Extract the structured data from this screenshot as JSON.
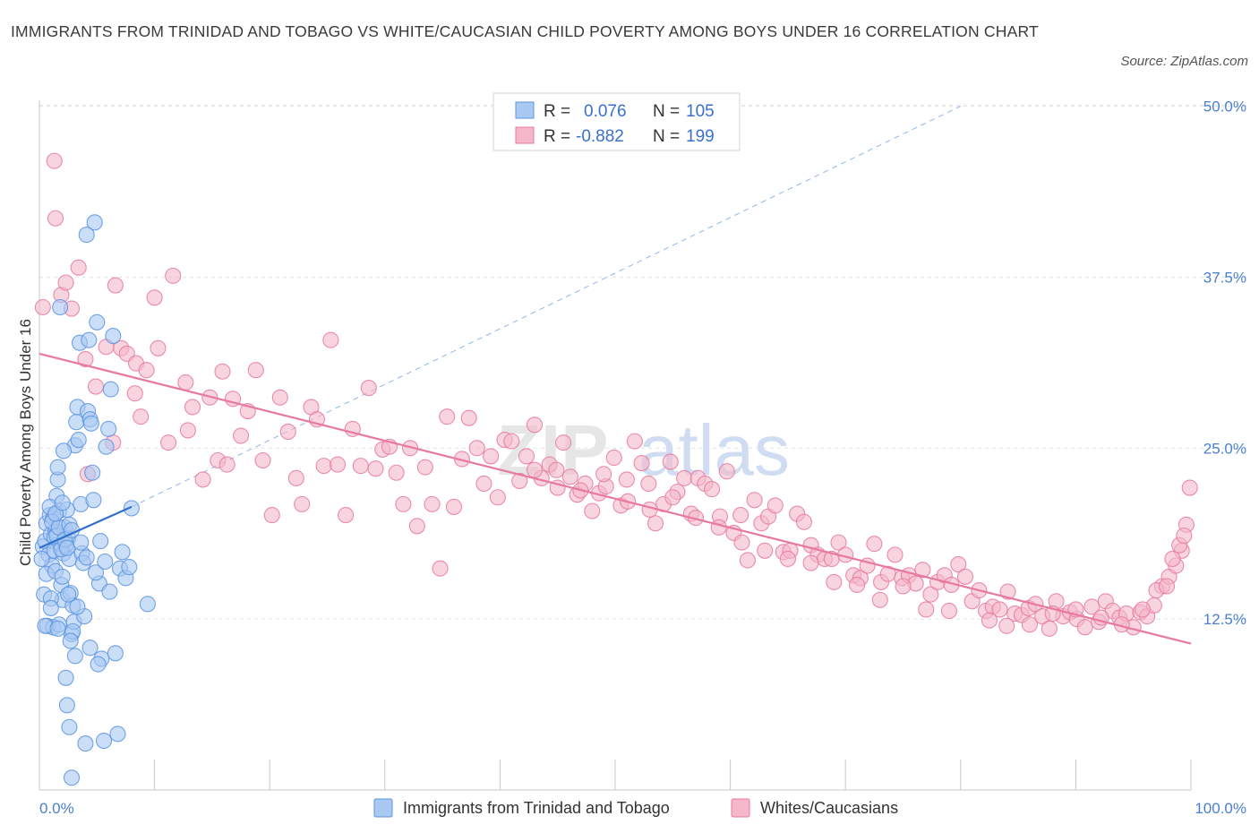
{
  "title": "IMMIGRANTS FROM TRINIDAD AND TOBAGO VS WHITE/CAUCASIAN CHILD POVERTY AMONG BOYS UNDER 16 CORRELATION CHART",
  "source": "Source: ZipAtlas.com",
  "watermark": {
    "zip": "ZIP",
    "atlas": "atlas"
  },
  "legend_box": {
    "rows": [
      {
        "r_label": "R =",
        "r_value": "0.076",
        "n_label": "N =",
        "n_value": "105",
        "color": "#a9c8f2"
      },
      {
        "r_label": "R =",
        "r_value": "-0.882",
        "n_label": "N =",
        "n_value": "199",
        "color": "#f4b8ca"
      }
    ]
  },
  "chart_data": {
    "type": "scatter",
    "title": "IMMIGRANTS FROM TRINIDAD AND TOBAGO VS WHITE/CAUCASIAN CHILD POVERTY AMONG BOYS UNDER 16 CORRELATION CHART",
    "xlabel": "",
    "ylabel": "Child Poverty Among Boys Under 16",
    "xlim": [
      0,
      100
    ],
    "ylim": [
      0,
      52
    ],
    "x_tick_labels": [
      "0.0%",
      "100.0%"
    ],
    "y_ticks": [
      12.5,
      25.0,
      37.5,
      50.0
    ],
    "y_tick_labels": [
      "12.5%",
      "25.0%",
      "37.5%",
      "50.0%"
    ],
    "grid": true,
    "legend_position": "bottom",
    "series": [
      {
        "name": "Immigrants from Trinidad and Tobago",
        "color": "#5b93e0",
        "fill": "#a9c8f2",
        "trend": {
          "x": [
            0,
            8
          ],
          "y": [
            17.7,
            20.7
          ],
          "dashed_extension_to": [
            80,
            50
          ]
        },
        "points": [
          [
            0.3,
            17.8
          ],
          [
            0.5,
            18.2
          ],
          [
            0.6,
            19.5
          ],
          [
            0.8,
            17.2
          ],
          [
            0.9,
            20.1
          ],
          [
            1.0,
            18.7
          ],
          [
            1.1,
            16.4
          ],
          [
            1.2,
            19.9
          ],
          [
            0.4,
            14.3
          ],
          [
            0.7,
            12.0
          ],
          [
            1.3,
            17.5
          ],
          [
            1.4,
            18.9
          ],
          [
            1.5,
            21.5
          ],
          [
            1.6,
            22.7
          ],
          [
            1.7,
            20.4
          ],
          [
            1.8,
            18.0
          ],
          [
            1.9,
            15.0
          ],
          [
            2.0,
            13.9
          ],
          [
            2.1,
            17.3
          ],
          [
            2.2,
            19.2
          ],
          [
            2.3,
            17.9
          ],
          [
            2.4,
            20.5
          ],
          [
            2.5,
            18.4
          ],
          [
            2.6,
            16.9
          ],
          [
            2.7,
            14.4
          ],
          [
            2.8,
            11.4
          ],
          [
            2.9,
            13.5
          ],
          [
            3.0,
            12.3
          ],
          [
            3.1,
            25.2
          ],
          [
            3.2,
            26.9
          ],
          [
            3.3,
            28.0
          ],
          [
            3.4,
            25.6
          ],
          [
            3.5,
            32.7
          ],
          [
            3.6,
            20.9
          ],
          [
            1.2,
            11.9
          ],
          [
            1.6,
            23.6
          ],
          [
            1.8,
            35.3
          ],
          [
            2.1,
            24.8
          ],
          [
            2.3,
            8.2
          ],
          [
            2.4,
            6.2
          ],
          [
            2.6,
            4.6
          ],
          [
            2.8,
            0.9
          ],
          [
            3.7,
            17.3
          ],
          [
            3.8,
            16.6
          ],
          [
            3.9,
            12.7
          ],
          [
            4.0,
            3.4
          ],
          [
            4.2,
            27.7
          ],
          [
            4.4,
            27.1
          ],
          [
            4.6,
            23.2
          ],
          [
            4.8,
            41.5
          ],
          [
            5.0,
            34.2
          ],
          [
            5.2,
            15.1
          ],
          [
            5.4,
            9.6
          ],
          [
            5.6,
            3.6
          ],
          [
            5.8,
            25.1
          ],
          [
            6.0,
            26.4
          ],
          [
            6.2,
            29.3
          ],
          [
            6.4,
            33.2
          ],
          [
            6.6,
            10.0
          ],
          [
            6.8,
            4.1
          ],
          [
            7.0,
            16.2
          ],
          [
            7.2,
            17.4
          ],
          [
            7.5,
            15.5
          ],
          [
            7.8,
            16.3
          ],
          [
            8.0,
            20.6
          ],
          [
            9.4,
            13.6
          ],
          [
            4.1,
            40.6
          ],
          [
            4.3,
            32.9
          ],
          [
            4.5,
            26.8
          ],
          [
            4.7,
            21.2
          ],
          [
            0.2,
            16.9
          ],
          [
            0.6,
            15.8
          ],
          [
            1.0,
            14.0
          ],
          [
            1.4,
            16.0
          ],
          [
            1.7,
            12.1
          ],
          [
            2.0,
            15.6
          ],
          [
            2.5,
            14.3
          ],
          [
            2.9,
            11.6
          ],
          [
            3.1,
            9.8
          ],
          [
            3.3,
            13.4
          ],
          [
            1.1,
            19.6
          ],
          [
            1.3,
            18.5
          ],
          [
            1.5,
            18.6
          ],
          [
            1.7,
            19.2
          ],
          [
            1.9,
            17.6
          ],
          [
            2.2,
            18.3
          ],
          [
            2.4,
            17.7
          ],
          [
            2.6,
            19.4
          ],
          [
            0.9,
            20.7
          ],
          [
            1.4,
            20.2
          ],
          [
            2.0,
            21.0
          ],
          [
            2.8,
            19.0
          ],
          [
            3.6,
            18.1
          ],
          [
            4.1,
            17.0
          ],
          [
            4.9,
            15.9
          ],
          [
            5.3,
            18.2
          ],
          [
            5.7,
            16.7
          ],
          [
            6.1,
            14.5
          ],
          [
            0.5,
            12.0
          ],
          [
            1.0,
            13.3
          ],
          [
            1.6,
            11.8
          ],
          [
            2.7,
            10.9
          ],
          [
            4.4,
            10.4
          ],
          [
            5.1,
            9.2
          ]
        ]
      },
      {
        "name": "Whites/Caucasians",
        "color": "#e8799e",
        "fill": "#f4b8ca",
        "trend": {
          "x": [
            0,
            100
          ],
          "y": [
            31.9,
            10.7
          ]
        },
        "points": [
          [
            0.3,
            35.3
          ],
          [
            1.4,
            41.8
          ],
          [
            1.3,
            46.0
          ],
          [
            1.9,
            36.2
          ],
          [
            2.3,
            37.1
          ],
          [
            2.8,
            35.2
          ],
          [
            3.4,
            38.2
          ],
          [
            4.0,
            31.5
          ],
          [
            4.2,
            23.1
          ],
          [
            4.9,
            29.5
          ],
          [
            5.8,
            32.4
          ],
          [
            6.4,
            25.4
          ],
          [
            6.6,
            36.9
          ],
          [
            7.1,
            32.3
          ],
          [
            7.6,
            31.9
          ],
          [
            8.3,
            29.0
          ],
          [
            8.4,
            31.2
          ],
          [
            8.8,
            27.3
          ],
          [
            9.3,
            30.7
          ],
          [
            10.0,
            36.0
          ],
          [
            10.3,
            32.3
          ],
          [
            11.2,
            25.4
          ],
          [
            11.6,
            37.6
          ],
          [
            12.7,
            29.8
          ],
          [
            12.9,
            26.3
          ],
          [
            13.3,
            28.0
          ],
          [
            14.2,
            22.7
          ],
          [
            14.8,
            28.7
          ],
          [
            15.5,
            24.1
          ],
          [
            15.9,
            30.6
          ],
          [
            16.3,
            23.8
          ],
          [
            16.8,
            28.6
          ],
          [
            17.5,
            25.9
          ],
          [
            18.1,
            27.7
          ],
          [
            18.8,
            30.7
          ],
          [
            19.4,
            24.1
          ],
          [
            20.2,
            20.1
          ],
          [
            20.9,
            28.7
          ],
          [
            21.6,
            26.2
          ],
          [
            22.3,
            22.8
          ],
          [
            22.8,
            20.9
          ],
          [
            23.6,
            28.0
          ],
          [
            24.1,
            27.1
          ],
          [
            24.7,
            23.7
          ],
          [
            25.3,
            32.9
          ],
          [
            25.9,
            23.8
          ],
          [
            26.6,
            20.1
          ],
          [
            27.2,
            26.4
          ],
          [
            27.9,
            23.7
          ],
          [
            28.6,
            29.4
          ],
          [
            29.2,
            23.5
          ],
          [
            29.8,
            24.9
          ],
          [
            30.4,
            25.1
          ],
          [
            31.0,
            23.2
          ],
          [
            31.6,
            20.9
          ],
          [
            32.2,
            25.0
          ],
          [
            32.8,
            19.3
          ],
          [
            33.5,
            23.6
          ],
          [
            34.1,
            20.9
          ],
          [
            34.8,
            16.2
          ],
          [
            35.4,
            27.3
          ],
          [
            36.0,
            20.7
          ],
          [
            36.7,
            24.2
          ],
          [
            37.3,
            27.2
          ],
          [
            38.0,
            25.0
          ],
          [
            38.6,
            22.4
          ],
          [
            39.2,
            24.4
          ],
          [
            39.8,
            21.4
          ],
          [
            40.4,
            25.6
          ],
          [
            41.0,
            25.5
          ],
          [
            41.7,
            22.6
          ],
          [
            42.3,
            24.4
          ],
          [
            43.0,
            26.7
          ],
          [
            43.6,
            22.8
          ],
          [
            44.3,
            23.8
          ],
          [
            44.9,
            23.4
          ],
          [
            45.5,
            25.4
          ],
          [
            46.1,
            22.9
          ],
          [
            46.7,
            21.6
          ],
          [
            47.4,
            22.4
          ],
          [
            48.0,
            20.4
          ],
          [
            48.6,
            21.7
          ],
          [
            49.2,
            22.2
          ],
          [
            49.9,
            24.3
          ],
          [
            50.5,
            20.8
          ],
          [
            51.1,
            21.1
          ],
          [
            51.7,
            25.5
          ],
          [
            52.3,
            23.9
          ],
          [
            52.9,
            22.4
          ],
          [
            53.5,
            19.5
          ],
          [
            54.2,
            20.9
          ],
          [
            54.8,
            24.0
          ],
          [
            55.4,
            21.8
          ],
          [
            56.0,
            22.8
          ],
          [
            56.6,
            20.2
          ],
          [
            57.2,
            22.8
          ],
          [
            57.8,
            22.4
          ],
          [
            58.4,
            22.0
          ],
          [
            59.1,
            20.0
          ],
          [
            59.7,
            23.3
          ],
          [
            60.3,
            18.8
          ],
          [
            60.9,
            20.1
          ],
          [
            61.5,
            16.8
          ],
          [
            62.1,
            21.2
          ],
          [
            62.7,
            19.5
          ],
          [
            63.3,
            20.0
          ],
          [
            63.9,
            20.8
          ],
          [
            64.6,
            17.4
          ],
          [
            65.2,
            17.5
          ],
          [
            65.8,
            20.2
          ],
          [
            66.4,
            19.6
          ],
          [
            67.0,
            17.9
          ],
          [
            67.6,
            17.2
          ],
          [
            68.2,
            16.9
          ],
          [
            68.8,
            16.9
          ],
          [
            69.4,
            18.1
          ],
          [
            70.0,
            17.2
          ],
          [
            70.7,
            15.7
          ],
          [
            71.3,
            15.5
          ],
          [
            71.9,
            16.4
          ],
          [
            72.5,
            18.0
          ],
          [
            73.1,
            15.2
          ],
          [
            73.7,
            15.8
          ],
          [
            74.3,
            17.2
          ],
          [
            74.9,
            15.5
          ],
          [
            75.5,
            15.7
          ],
          [
            76.1,
            15.1
          ],
          [
            76.7,
            16.1
          ],
          [
            77.4,
            14.3
          ],
          [
            78.0,
            15.2
          ],
          [
            78.6,
            15.7
          ],
          [
            79.2,
            15.0
          ],
          [
            79.8,
            16.5
          ],
          [
            80.4,
            15.6
          ],
          [
            81.0,
            13.8
          ],
          [
            81.6,
            14.6
          ],
          [
            82.2,
            13.1
          ],
          [
            82.8,
            13.4
          ],
          [
            83.4,
            13.2
          ],
          [
            84.1,
            14.5
          ],
          [
            84.7,
            12.9
          ],
          [
            85.3,
            12.8
          ],
          [
            85.9,
            13.3
          ],
          [
            86.5,
            13.6
          ],
          [
            87.1,
            12.7
          ],
          [
            87.7,
            11.8
          ],
          [
            88.3,
            13.8
          ],
          [
            88.9,
            12.7
          ],
          [
            89.5,
            13.0
          ],
          [
            90.1,
            12.5
          ],
          [
            90.8,
            11.9
          ],
          [
            91.4,
            13.4
          ],
          [
            92.0,
            12.3
          ],
          [
            92.6,
            13.8
          ],
          [
            93.2,
            13.1
          ],
          [
            93.8,
            12.6
          ],
          [
            94.4,
            12.9
          ],
          [
            95.0,
            11.9
          ],
          [
            95.6,
            13.0
          ],
          [
            96.2,
            12.7
          ],
          [
            96.8,
            13.5
          ],
          [
            97.5,
            14.9
          ],
          [
            98.1,
            15.6
          ],
          [
            98.7,
            16.4
          ],
          [
            99.2,
            17.5
          ],
          [
            99.6,
            19.4
          ],
          [
            99.9,
            22.1
          ],
          [
            97.0,
            14.6
          ],
          [
            97.9,
            14.9
          ],
          [
            98.4,
            16.9
          ],
          [
            99.0,
            17.9
          ],
          [
            99.4,
            18.6
          ],
          [
            82.5,
            12.4
          ],
          [
            84.0,
            12.0
          ],
          [
            86.0,
            12.1
          ],
          [
            88.0,
            12.9
          ],
          [
            90.0,
            13.2
          ],
          [
            92.2,
            12.6
          ],
          [
            94.0,
            12.1
          ],
          [
            95.8,
            13.2
          ],
          [
            79.0,
            13.1
          ],
          [
            77.0,
            13.2
          ],
          [
            75.0,
            14.9
          ],
          [
            73.0,
            13.9
          ],
          [
            71.0,
            15.0
          ],
          [
            69.0,
            15.2
          ],
          [
            67.0,
            16.6
          ],
          [
            65.0,
            16.9
          ],
          [
            63.0,
            17.5
          ],
          [
            61.0,
            18.1
          ],
          [
            59.0,
            19.2
          ],
          [
            57.0,
            19.9
          ],
          [
            55.0,
            21.4
          ],
          [
            53.0,
            20.5
          ],
          [
            51.0,
            22.7
          ],
          [
            49.0,
            23.1
          ],
          [
            47.0,
            21.9
          ],
          [
            45.0,
            22.1
          ],
          [
            43.0,
            23.4
          ]
        ]
      }
    ]
  }
}
